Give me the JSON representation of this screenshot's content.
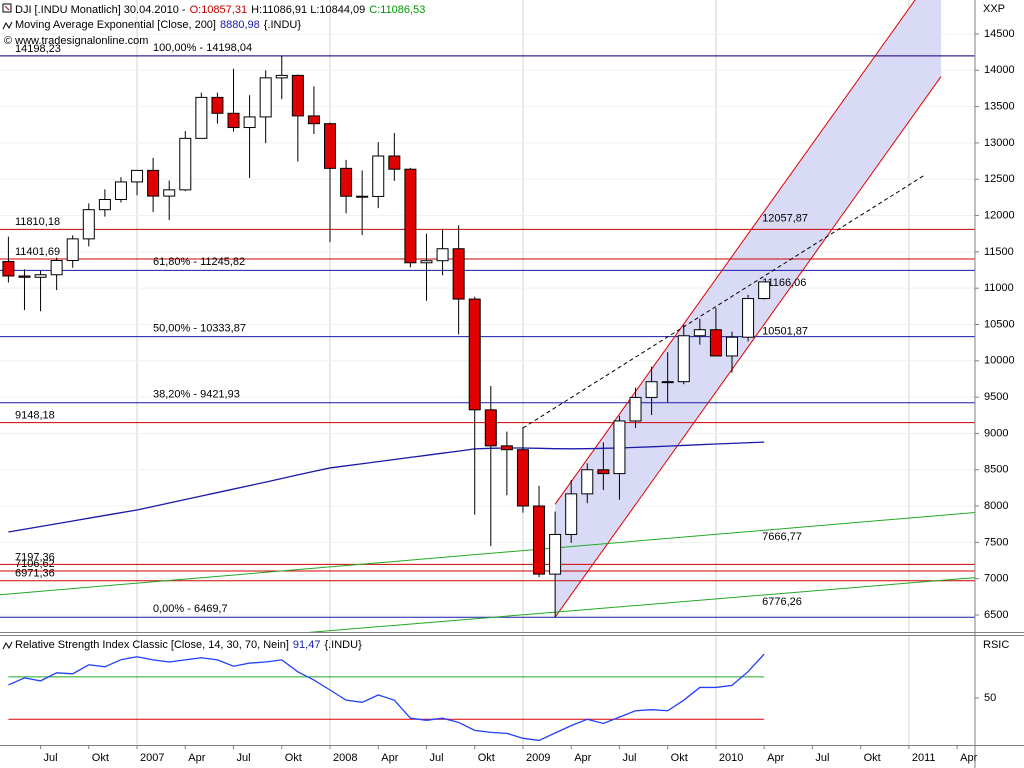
{
  "chart_data": {
    "type": "candlestick",
    "title": "DJI [.INDU  Monatlich] 30.04.2010 -",
    "ohlc_label": [
      {
        "text": "O:10857,31",
        "color": "#c00000"
      },
      {
        "text": "H:11086,91 L:10844,09",
        "color": "#000000"
      },
      {
        "text": "C:11086,53",
        "color": "#009900"
      }
    ],
    "copyright": "© www.tradesignalonline.com",
    "axis_label": "XXP",
    "x": [
      "2006-05",
      "2006-06",
      "2006-07",
      "2006-08",
      "2006-09",
      "2006-10",
      "2006-11",
      "2006-12",
      "2007-01",
      "2007-02",
      "2007-03",
      "2007-04",
      "2007-05",
      "2007-06",
      "2007-07",
      "2007-08",
      "2007-09",
      "2007-10",
      "2007-11",
      "2007-12",
      "2008-01",
      "2008-02",
      "2008-03",
      "2008-04",
      "2008-05",
      "2008-06",
      "2008-07",
      "2008-08",
      "2008-09",
      "2008-10",
      "2008-11",
      "2008-12",
      "2009-01",
      "2009-02",
      "2009-03",
      "2009-04",
      "2009-05",
      "2009-06",
      "2009-07",
      "2009-08",
      "2009-09",
      "2009-10",
      "2009-11",
      "2009-12",
      "2010-01",
      "2010-02",
      "2010-03",
      "2010-04",
      "2010-05",
      "2010-06",
      "2010-07",
      "2010-08",
      "2010-09",
      "2010-10",
      "2010-11",
      "2010-12",
      "2011-01",
      "2011-02",
      "2011-03",
      "2011-04"
    ],
    "open": [
      11367,
      11168,
      11150,
      11185,
      11381,
      11679,
      12081,
      12221,
      12463,
      12622,
      12268,
      12354,
      13063,
      13627,
      13408,
      13212,
      13358,
      13896,
      13930,
      13372,
      13265,
      12650,
      12266,
      12263,
      12820,
      12638,
      11350,
      11378,
      11543,
      10850,
      9325,
      8829,
      8776,
      8001,
      7063,
      7609,
      8168,
      8500,
      8447,
      9172,
      9496,
      9712,
      9713,
      10345,
      10428,
      10067,
      10325,
      10857.31,
      null,
      null,
      null,
      null,
      null,
      null,
      null,
      null,
      null,
      null,
      null,
      null
    ],
    "high": [
      11709,
      11260,
      11242,
      11420,
      11728,
      12167,
      12361,
      12529,
      12626,
      12795,
      12482,
      13162,
      13692,
      13692,
      14021,
      13657,
      14000,
      14198,
      13943,
      13780,
      13279,
      12767,
      12622,
      13010,
      13136,
      12657,
      11750,
      11808,
      11867,
      10882,
      9654,
      9026,
      9088,
      8280,
      7924,
      8358,
      8588,
      8877,
      9242,
      9630,
      9918,
      10119,
      10496,
      10580,
      10729,
      10402,
      10908,
      11086.91,
      null,
      null,
      null,
      null,
      null,
      null,
      null,
      null,
      null,
      null,
      null,
      null
    ],
    "low": [
      11079,
      10698,
      10683,
      10974,
      11281,
      11576,
      11986,
      12180,
      12280,
      12050,
      11939,
      12336,
      13063,
      13266,
      13156,
      12518,
      12996,
      13603,
      12743,
      13123,
      11634,
      12031,
      11731,
      12102,
      12479,
      11287,
      10827,
      11179,
      10365,
      7882,
      7449,
      8149,
      7909,
      7021,
      6470,
      7492,
      8039,
      8221,
      8087,
      9075,
      9253,
      9430,
      9678,
      10222,
      10068,
      9835,
      10267,
      10844.09,
      null,
      null,
      null,
      null,
      null,
      null,
      null,
      null,
      null,
      null,
      null,
      null
    ],
    "close": [
      11168,
      11150,
      11185,
      11381,
      11679,
      12081,
      12221,
      12463,
      12622,
      12268,
      12354,
      13063,
      13627,
      13408,
      13212,
      13358,
      13896,
      13930,
      13372,
      13265,
      12650,
      12266,
      12263,
      12820,
      12638,
      11350,
      11378,
      11543,
      10850,
      9325,
      8829,
      8776,
      8001,
      7063,
      7609,
      8168,
      8500,
      8447,
      9172,
      9496,
      9712,
      9713,
      10345,
      10428,
      10067,
      10325,
      10857,
      11086.53,
      null,
      null,
      null,
      null,
      null,
      null,
      null,
      null,
      null,
      null,
      null,
      null
    ],
    "up_color": "#ffffff",
    "down_color": "#e00000",
    "ema": {
      "name": "Moving Average Exponential [Close, 200]",
      "value_label": "8880,98",
      "suffix": "{.INDU}",
      "color": "#1a1aa8",
      "values": [
        7643,
        7681,
        7719,
        7757,
        7795,
        7833,
        7871,
        7909,
        7946,
        7994,
        8042,
        8090,
        8138,
        8186,
        8234,
        8282,
        8330,
        8380,
        8430,
        8478,
        8525,
        8554,
        8583,
        8612,
        8641,
        8670,
        8699,
        8728,
        8757,
        8787,
        8795,
        8800,
        8800,
        8795,
        8790,
        8788,
        8790,
        8795,
        8800,
        8808,
        8816,
        8825,
        8835,
        8845,
        8855,
        8863,
        8872,
        8880.98,
        null,
        null,
        null,
        null,
        null,
        null,
        null,
        null,
        null,
        null,
        null,
        null
      ]
    },
    "ylim": [
      6266,
      14968
    ],
    "yticks": [
      6500,
      7000,
      7500,
      8000,
      8500,
      9000,
      9500,
      10000,
      10500,
      11000,
      11500,
      12000,
      12500,
      13000,
      13500,
      14000,
      14500
    ],
    "ygrid": true,
    "xgrid": "year",
    "xticks": [
      {
        "value": "2006-07",
        "label": "Jul"
      },
      {
        "value": "2006-10",
        "label": "Okt"
      },
      {
        "value": "2007-01",
        "label": "2007"
      },
      {
        "value": "2007-04",
        "label": "Apr"
      },
      {
        "value": "2007-07",
        "label": "Jul"
      },
      {
        "value": "2007-10",
        "label": "Okt"
      },
      {
        "value": "2008-01",
        "label": "2008"
      },
      {
        "value": "2008-04",
        "label": "Apr"
      },
      {
        "value": "2008-07",
        "label": "Jul"
      },
      {
        "value": "2008-10",
        "label": "Okt"
      },
      {
        "value": "2009-01",
        "label": "2009"
      },
      {
        "value": "2009-04",
        "label": "Apr"
      },
      {
        "value": "2009-07",
        "label": "Jul"
      },
      {
        "value": "2009-10",
        "label": "Okt"
      },
      {
        "value": "2010-01",
        "label": "2010"
      },
      {
        "value": "2010-04",
        "label": "Apr"
      },
      {
        "value": "2010-07",
        "label": "Jul"
      },
      {
        "value": "2010-10",
        "label": "Okt"
      },
      {
        "value": "2011-01",
        "label": "2011"
      },
      {
        "value": "2011-04",
        "label": "Apr"
      }
    ],
    "levels": [
      {
        "value": 14198.23,
        "label": "14198,23",
        "color": "#d00000"
      },
      {
        "value": 11810.18,
        "label": "11810,18",
        "color": "#d00000"
      },
      {
        "value": 11401.69,
        "label": "11401,69",
        "color": "#d00000"
      },
      {
        "value": 9148.18,
        "label": "9148,18",
        "color": "#d00000"
      },
      {
        "value": 7197.36,
        "label": "7197,36",
        "color": "#d00000"
      },
      {
        "value": 7106.62,
        "label": "7106,62",
        "color": "#d00000"
      },
      {
        "value": 6971.36,
        "label": "6971,36",
        "color": "#d00000"
      }
    ],
    "fibonacci": [
      {
        "value": 14198.04,
        "label": "100,00% - 14198,04",
        "color": "#1a1aa8"
      },
      {
        "value": 11245.82,
        "label": "61,80% - 11245,82",
        "color": "#1a1aa8"
      },
      {
        "value": 10333.87,
        "label": "50,00% - 10333,87",
        "color": "#1a1aa8"
      },
      {
        "value": 9421.93,
        "label": "38,20% - 9421,93",
        "color": "#1a1aa8"
      },
      {
        "value": 6469.7,
        "label": "0,00% - 6469,7",
        "color": "#1a1aa8"
      }
    ],
    "channel_fill": "#d9daf6",
    "trendlines": [
      {
        "start": {
          "x": "2009-03",
          "value": 6469.7
        },
        "at": {
          "x": "2010-04",
          "value": 10501.87,
          "label": "10501,87"
        },
        "until": "2011-03",
        "color": "#e00000",
        "channel": true
      },
      {
        "start": {
          "x": "2009-03",
          "value": 8025.7
        },
        "at": {
          "x": "2010-04",
          "value": 12057.87,
          "label": "12057,87"
        },
        "until": "2011-03",
        "color": "#e00000",
        "channel": true
      },
      {
        "start": {
          "x": "2009-01",
          "value": 9075
        },
        "at": {
          "x": "2010-04",
          "value": 11166.06,
          "label": "11166,06"
        },
        "until": "2011-02",
        "color": "#000000",
        "dash": true
      },
      {
        "start": {
          "x": "2006-05",
          "value": 6789
        },
        "at": {
          "x": "2010-04",
          "value": 7666.77,
          "label": "7666,77"
        },
        "extend": true,
        "color": "#22aa22"
      },
      {
        "start": {
          "x": "2007-12",
          "value": 6266
        },
        "at": {
          "x": "2010-04",
          "value": 6776.26,
          "label": "6776,26"
        },
        "extend": true,
        "color": "#22aa22"
      }
    ],
    "indicator": {
      "name": "Relative Strength Index Classic [Close, 14, 30, 70, Nein]",
      "value_label": "91,47",
      "suffix": "{.INDU}",
      "axis_label": "RSIC",
      "color": "#2040ff",
      "values": [
        62.4,
        69,
        66.2,
        73.8,
        72.9,
        81.4,
        79.5,
        86.2,
        89,
        86,
        84,
        86,
        88,
        86,
        80,
        83,
        84,
        86,
        74.8,
        67,
        57.6,
        48,
        46,
        52.9,
        48,
        31,
        29,
        31,
        27,
        19.5,
        17.6,
        16.7,
        12,
        10,
        17,
        24,
        30,
        26,
        32,
        38,
        39,
        38,
        48,
        60,
        60,
        62,
        75,
        91.47,
        null,
        null,
        null,
        null,
        null,
        null,
        null,
        null,
        null,
        null,
        null,
        null
      ],
      "ylim": [
        5.7,
        109.5
      ],
      "yticks": [
        50
      ],
      "levels": [
        {
          "value": 70,
          "color": "#22aa22"
        },
        {
          "value": 30,
          "color": "#e00000"
        }
      ]
    }
  }
}
